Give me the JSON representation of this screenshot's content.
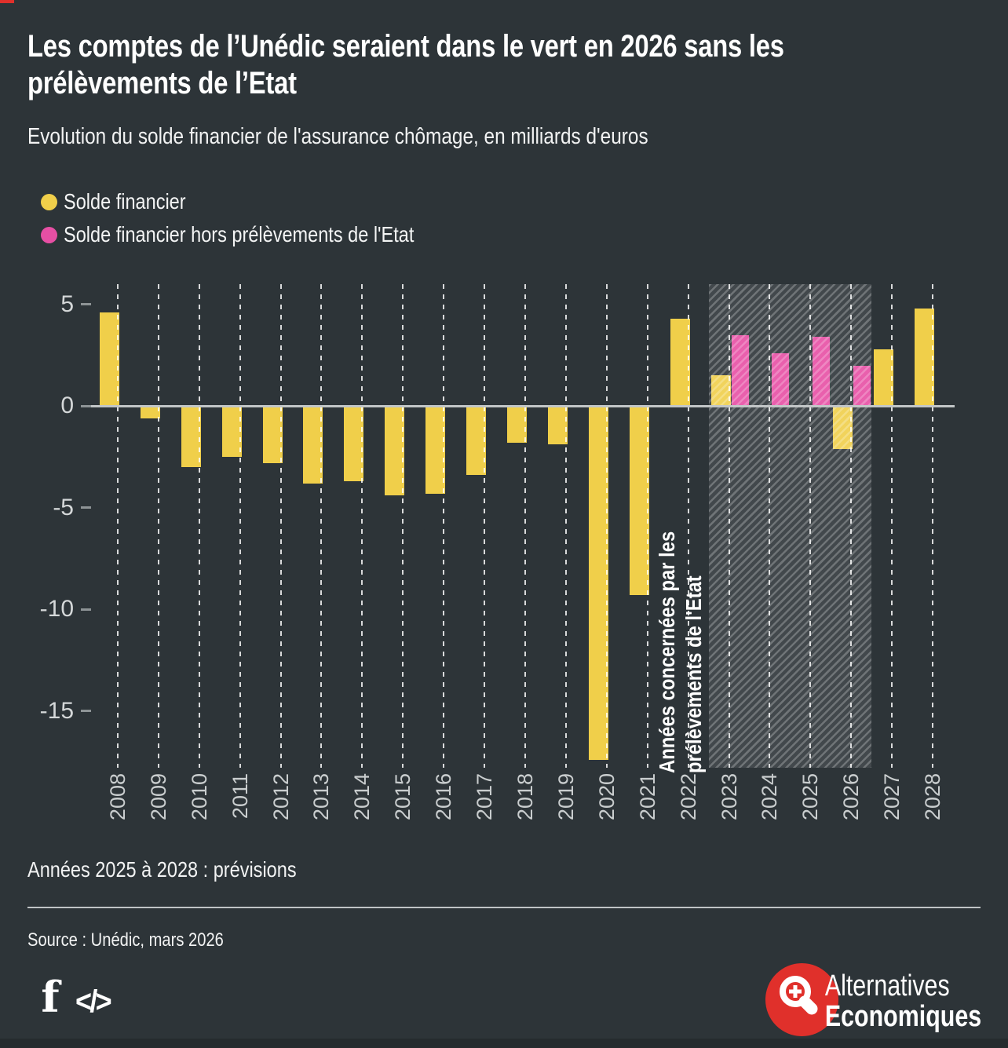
{
  "chart_data": {
    "type": "bar",
    "title": "Les comptes de l’Unédic seraient dans le vert en 2026 sans les prélèvements de l’Etat",
    "subtitle": "Evolution du solde financier de l'assurance chômage, en milliards d'euros",
    "categories": [
      "2008",
      "2009",
      "2010",
      "2011",
      "2012",
      "2013",
      "2014",
      "2015",
      "2016",
      "2017",
      "2018",
      "2019",
      "2020",
      "2021",
      "2022",
      "2023",
      "2024",
      "2025",
      "2026",
      "2027",
      "2028"
    ],
    "series": [
      {
        "name": "Solde financier",
        "color": "#f0cf4a",
        "values": [
          4.6,
          -0.6,
          -3.0,
          -2.5,
          -2.8,
          -3.8,
          -3.7,
          -4.4,
          -4.3,
          -3.4,
          -1.8,
          -1.9,
          -17.4,
          -9.3,
          4.3,
          1.5,
          null,
          null,
          -2.1,
          2.8,
          4.8
        ]
      },
      {
        "name": "Solde financier hors prélèvements de l'Etat",
        "color": "#e74fa4",
        "values": [
          null,
          null,
          null,
          null,
          null,
          null,
          null,
          null,
          null,
          null,
          null,
          null,
          null,
          null,
          null,
          3.5,
          2.6,
          3.4,
          2.0,
          null,
          null
        ]
      }
    ],
    "yticks": [
      5,
      0,
      -5,
      -10,
      -15
    ],
    "ylim": [
      -17.8,
      6
    ],
    "grid": "vertical-dashed",
    "legend_position": "top-left",
    "highlight_region": {
      "from": "2023",
      "to": "2026",
      "style": "hatched",
      "label_lines": [
        "Années concernées par les",
        "prélèvements de l'Etat"
      ]
    }
  },
  "footer": {
    "note": "Années 2025 à 2028 : prévisions",
    "source": "Source : Unédic, mars 2026",
    "brand_line1": "Alternatives",
    "brand_line2": "Economiques"
  },
  "icons": {
    "facebook": "f",
    "code": "</>"
  },
  "colors": {
    "background": "#2d3438",
    "solde": "#f0cf4a",
    "solde_hors_prelevements": "#e74fa4",
    "axis_text": "#c9cdce",
    "zero_line": "#c2c6c7",
    "logo_red": "#e0302b"
  }
}
